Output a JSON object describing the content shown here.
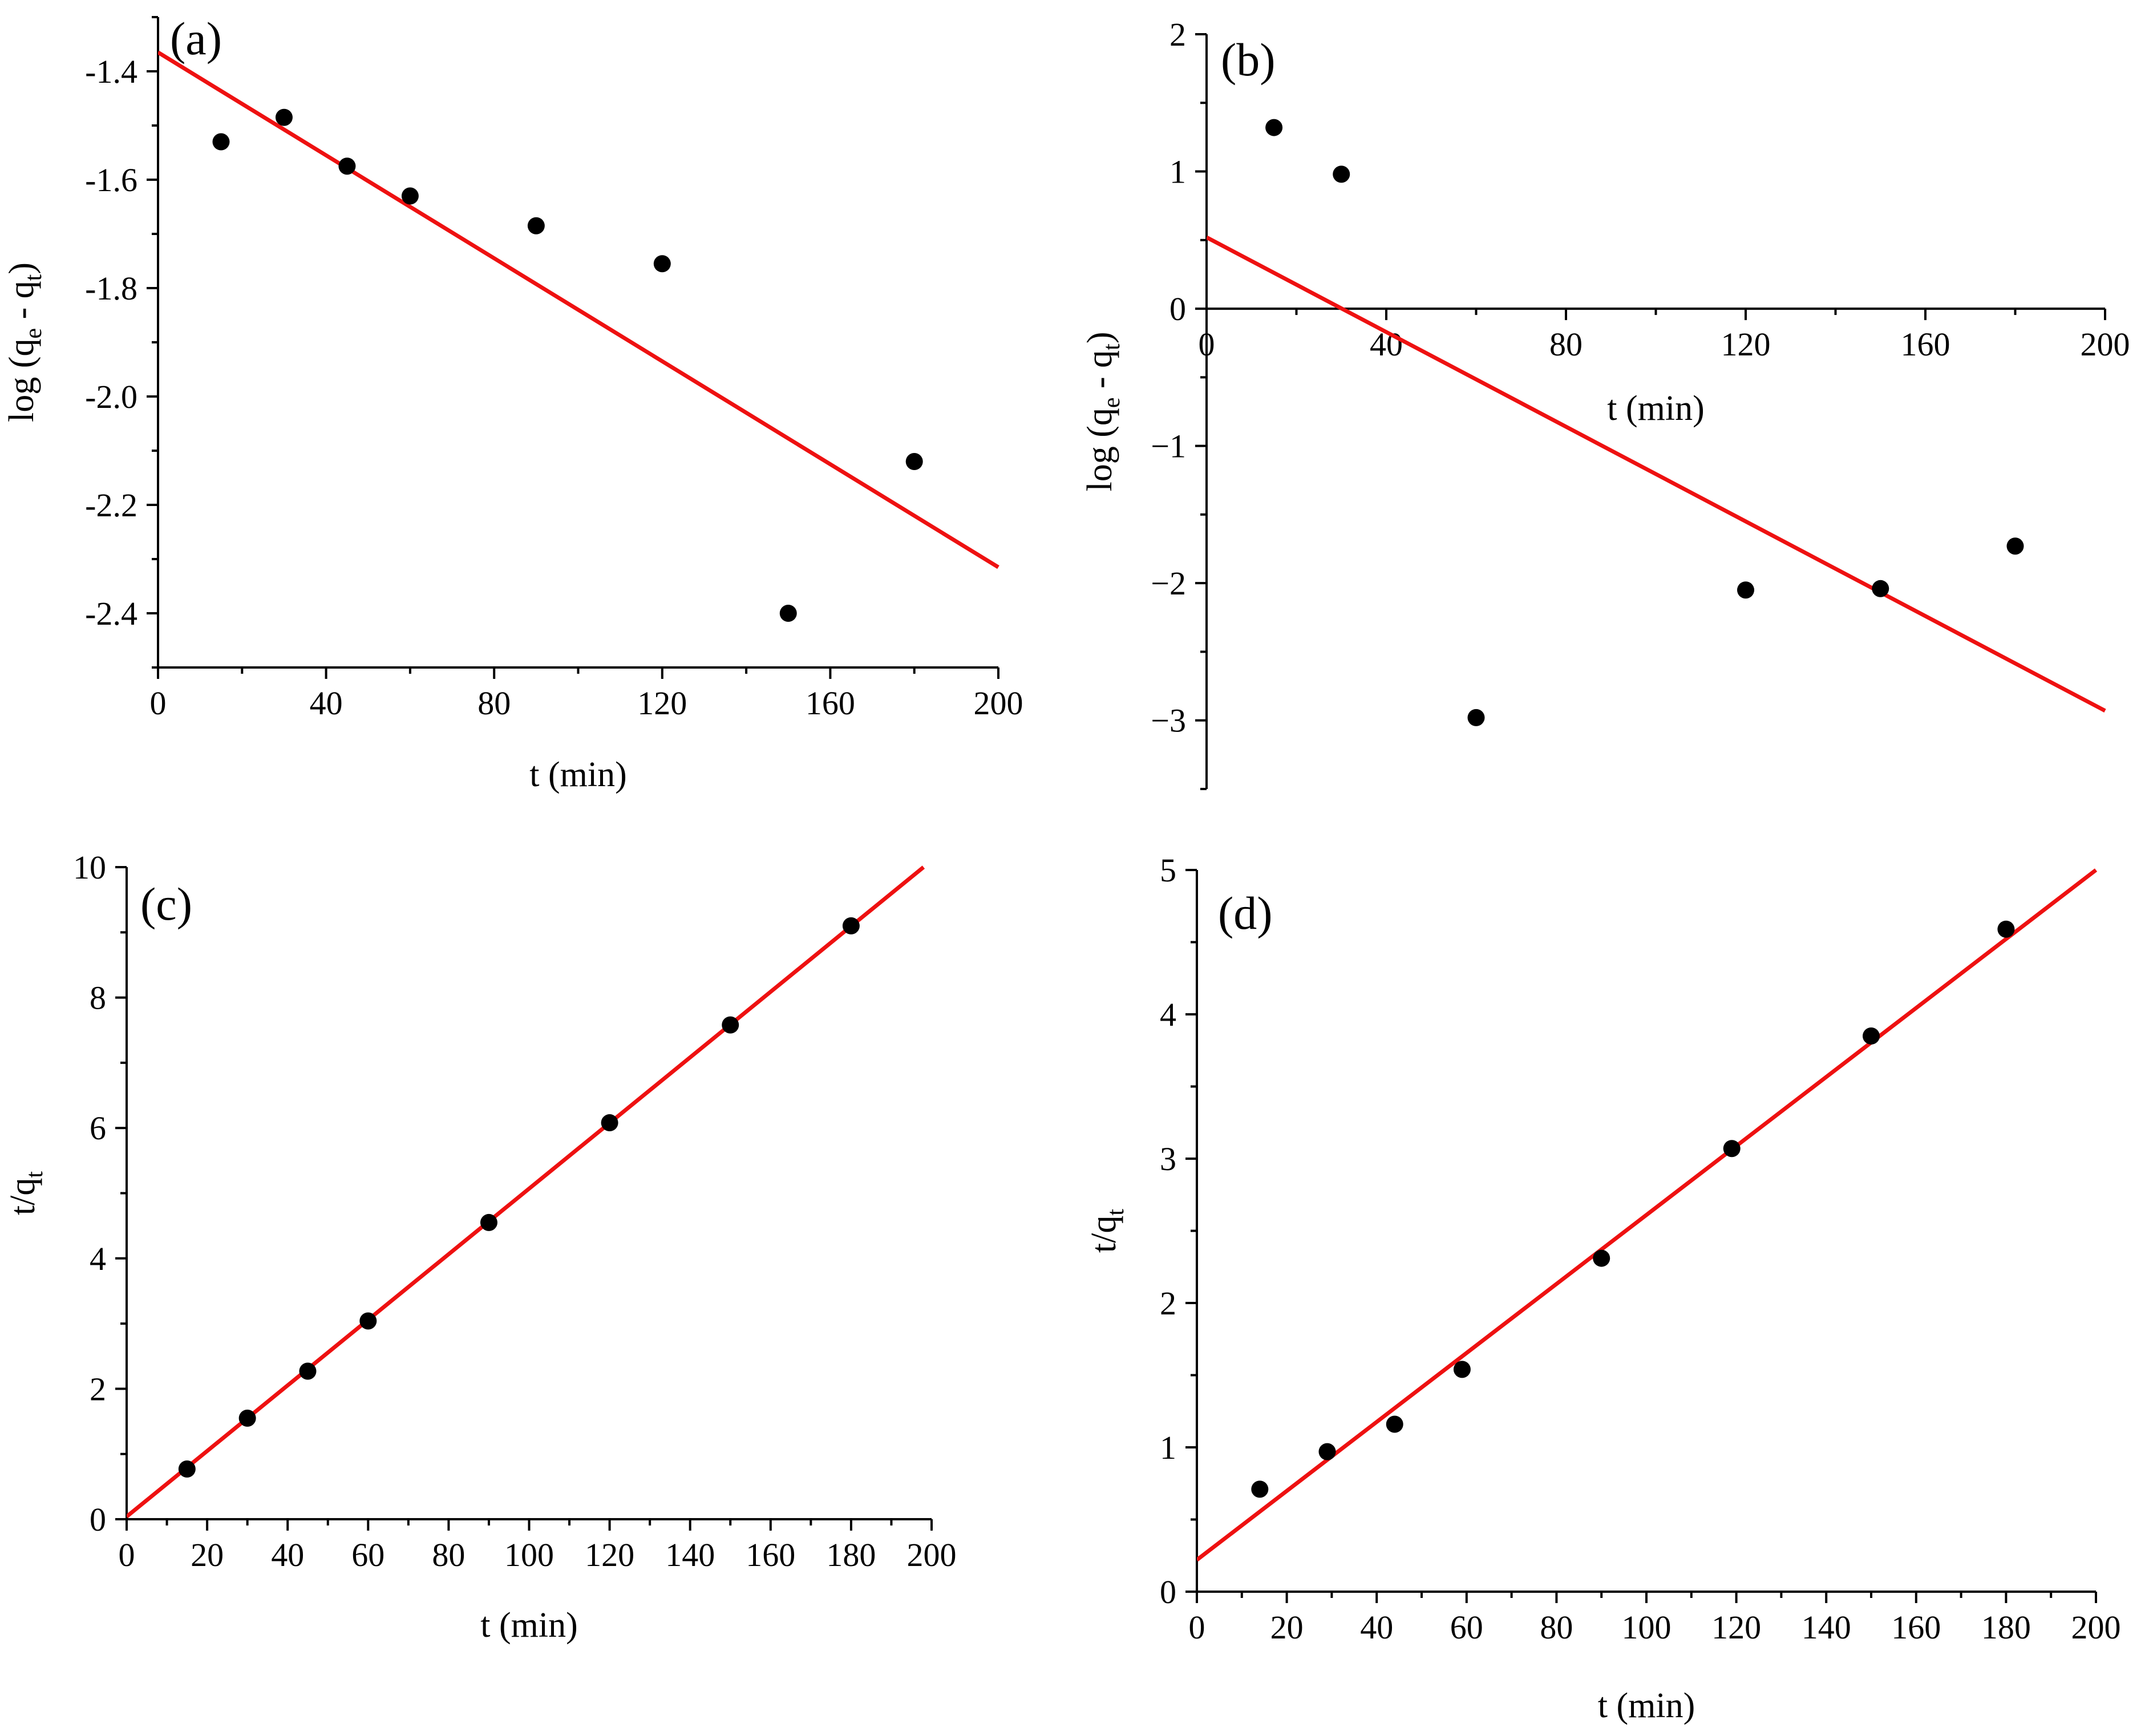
{
  "figure_title": "",
  "chart_data": [
    {
      "id": "a",
      "type": "scatter",
      "panel_label": "(a)",
      "title": "",
      "xlabel": "t (min)",
      "ylabel": {
        "prefix": "log (q",
        "sub1": "e",
        "middle": " - q",
        "sub2": "t",
        "suffix": ")"
      },
      "xlim": [
        0,
        200
      ],
      "ylim": [
        -2.5,
        -1.3
      ],
      "xticks": [
        0,
        40,
        80,
        120,
        160,
        200
      ],
      "xtick_labels": [
        "0",
        "40",
        "80",
        "120",
        "160",
        "200"
      ],
      "yticks": [
        -1.4,
        -1.6,
        -1.8,
        -2.0,
        -2.2,
        -2.4
      ],
      "ytick_labels": [
        "-1.4",
        "-1.6",
        "-1.8",
        "-2.0",
        "-2.2",
        "-2.4"
      ],
      "x": [
        15,
        30,
        45,
        60,
        90,
        120,
        150,
        180
      ],
      "y": [
        -1.53,
        -1.485,
        -1.575,
        -1.63,
        -1.685,
        -1.755,
        -2.4,
        -2.12
      ],
      "fit": {
        "x": [
          0,
          200
        ],
        "y": [
          -1.365,
          -2.315
        ]
      },
      "grid": false,
      "legend": "none"
    },
    {
      "id": "b",
      "type": "scatter",
      "panel_label": "(b)",
      "title": "",
      "xlabel": "t (min)",
      "ylabel": {
        "prefix": "log (q",
        "sub1": "e",
        "middle": " - q",
        "sub2": "t",
        "suffix": ")"
      },
      "xlim": [
        0,
        200
      ],
      "ylim": [
        -3.5,
        2
      ],
      "xticks": [
        0,
        40,
        80,
        120,
        160,
        200
      ],
      "xtick_labels": [
        "0",
        "40",
        "80",
        "120",
        "160",
        "200"
      ],
      "yticks": [
        2,
        1,
        0,
        -1,
        -2,
        -3
      ],
      "ytick_labels": [
        "2",
        "1",
        "0",
        "−1",
        "−2",
        "−3"
      ],
      "x": [
        15,
        30,
        60,
        120,
        150,
        180
      ],
      "y": [
        1.32,
        0.98,
        -2.98,
        -2.05,
        -2.04,
        -1.73
      ],
      "fit": {
        "x": [
          0,
          200
        ],
        "y": [
          0.52,
          -2.93
        ]
      },
      "grid": false,
      "legend": "none"
    },
    {
      "id": "c",
      "type": "scatter",
      "panel_label": "(c)",
      "title": "",
      "xlabel": "t (min)",
      "ylabel": {
        "prefix": "t/q",
        "sub1": "t",
        "middle": "",
        "sub2": "",
        "suffix": ""
      },
      "xlim": [
        0,
        200
      ],
      "ylim": [
        0,
        10
      ],
      "xticks": [
        0,
        20,
        40,
        60,
        80,
        100,
        120,
        140,
        160,
        180,
        200
      ],
      "xtick_labels": [
        "0",
        "20",
        "40",
        "60",
        "80",
        "100",
        "120",
        "140",
        "160",
        "180",
        "200"
      ],
      "yticks": [
        0,
        2,
        4,
        6,
        8,
        10
      ],
      "ytick_labels": [
        "0",
        "2",
        "4",
        "6",
        "8",
        "10"
      ],
      "x": [
        15,
        30,
        45,
        60,
        90,
        120,
        150,
        180
      ],
      "y": [
        0.77,
        1.55,
        2.27,
        3.04,
        4.55,
        6.08,
        7.58,
        9.1
      ],
      "fit": {
        "x": [
          0,
          198
        ],
        "y": [
          0.04,
          10.0
        ]
      },
      "grid": false,
      "legend": "none"
    },
    {
      "id": "d",
      "type": "scatter",
      "panel_label": "(d)",
      "title": "",
      "xlabel": "t (min)",
      "ylabel": {
        "prefix": "t/q",
        "sub1": "t",
        "middle": "",
        "sub2": "",
        "suffix": ""
      },
      "xlim": [
        0,
        200
      ],
      "ylim": [
        0,
        5
      ],
      "xticks": [
        0,
        20,
        40,
        60,
        80,
        100,
        120,
        140,
        160,
        180,
        200
      ],
      "xtick_labels": [
        "0",
        "20",
        "40",
        "60",
        "80",
        "100",
        "120",
        "140",
        "160",
        "180",
        "200"
      ],
      "yticks": [
        0,
        1,
        2,
        3,
        4,
        5
      ],
      "ytick_labels": [
        "0",
        "1",
        "2",
        "3",
        "4",
        "5"
      ],
      "x": [
        14,
        29,
        44,
        59,
        90,
        119,
        150,
        180
      ],
      "y": [
        0.71,
        0.97,
        1.16,
        1.54,
        2.31,
        3.07,
        3.85,
        4.59
      ],
      "fit": {
        "x": [
          0,
          200
        ],
        "y": [
          0.22,
          5.0
        ]
      },
      "grid": false,
      "legend": "none"
    }
  ]
}
